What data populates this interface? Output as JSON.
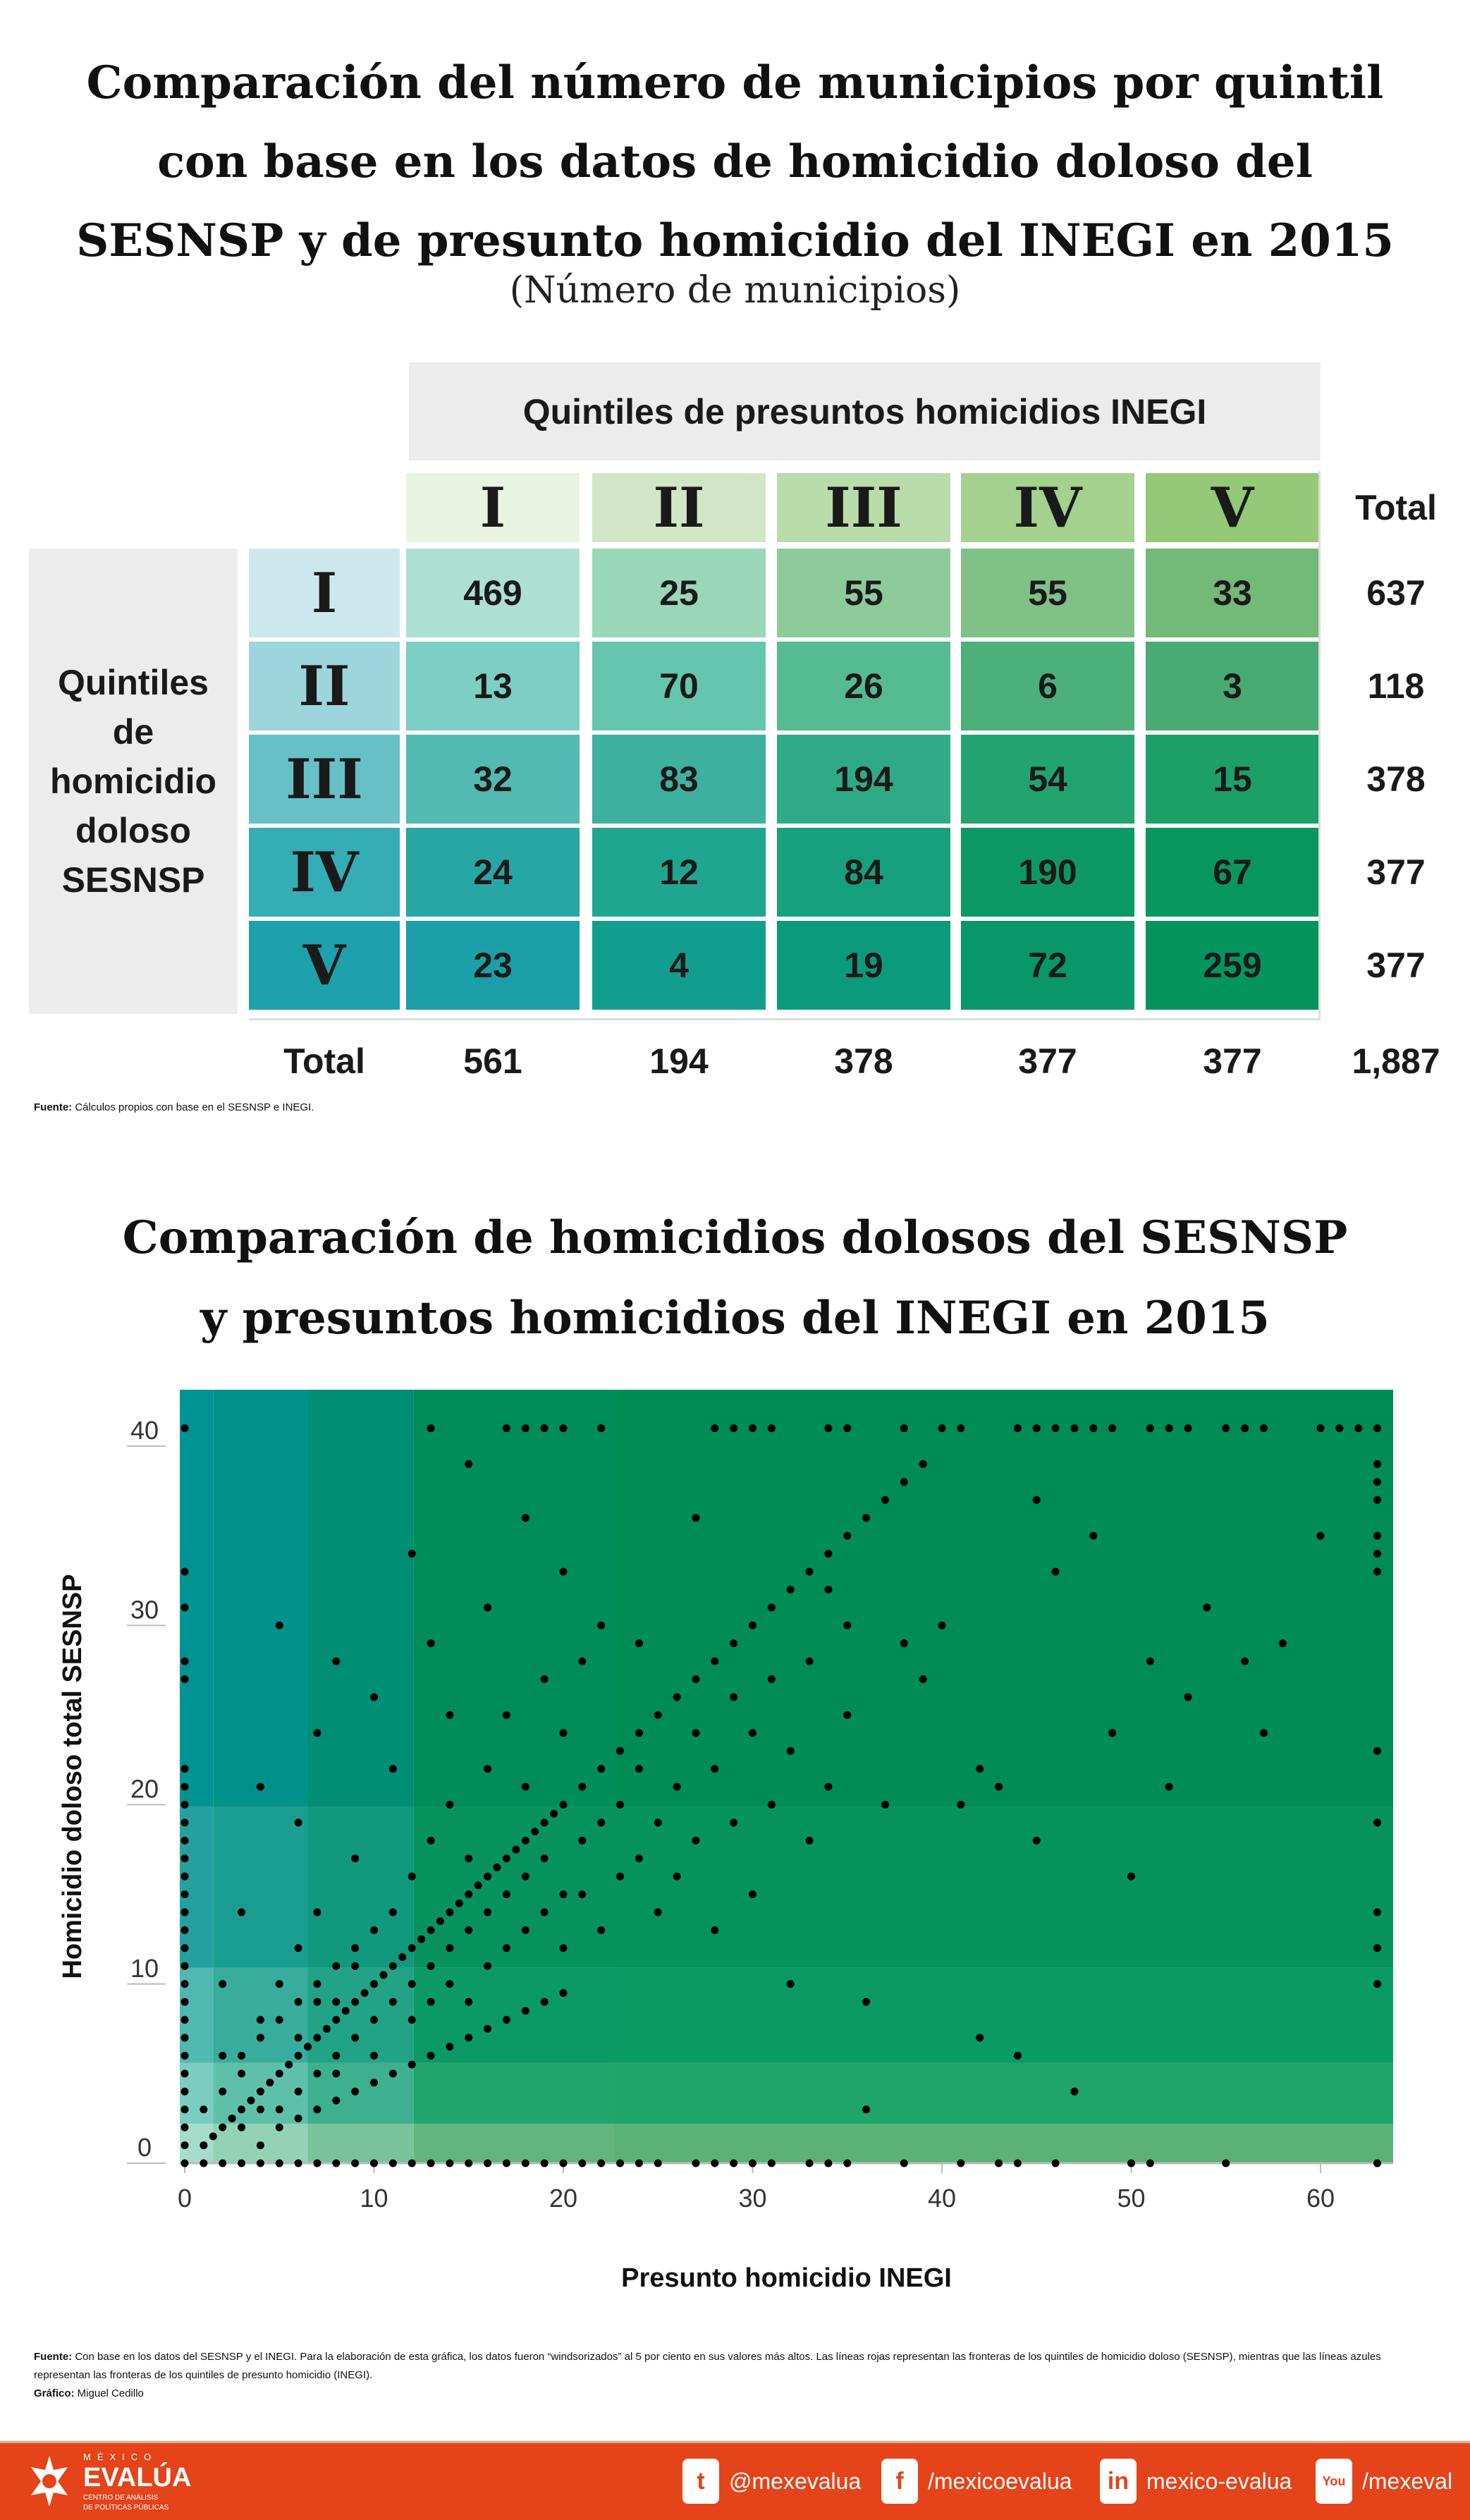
{
  "table_title": [
    "Comparación del número de municipios por quintil",
    "con base en los datos de homicidio doloso del",
    "SESNSP y de presunto homicidio del INEGI en 2015"
  ],
  "table_subtitle": "(Número de municipios)",
  "table": {
    "col_group_label": "Quintiles de presuntos homicidios INEGI",
    "row_group_label": [
      "Quintiles",
      "de",
      "homicidio",
      "doloso",
      "SESNSP"
    ],
    "columns": [
      "I",
      "II",
      "III",
      "IV",
      "V"
    ],
    "rows": [
      "I",
      "II",
      "III",
      "IV",
      "V"
    ],
    "total_label": "Total",
    "values": [
      [
        469,
        25,
        55,
        55,
        33
      ],
      [
        13,
        70,
        26,
        6,
        3
      ],
      [
        32,
        83,
        194,
        54,
        15
      ],
      [
        24,
        12,
        84,
        190,
        67
      ],
      [
        23,
        4,
        19,
        72,
        259
      ]
    ],
    "row_totals": [
      "637",
      "118",
      "378",
      "377",
      "377"
    ],
    "col_totals": [
      "561",
      "194",
      "378",
      "377",
      "377"
    ],
    "grand_total": "1,887",
    "colors": {
      "col_headers": [
        "#e8f3e2",
        "#d2e6c7",
        "#badcaa",
        "#a5d18e",
        "#95c978"
      ],
      "row_headers": [
        "#cde8ec",
        "#9dd5dc",
        "#66c0c6",
        "#35adb4",
        "#1ea1ad"
      ],
      "cells": [
        [
          "#ade0d2",
          "#9ad6b9",
          "#8ecb9b",
          "#80c186",
          "#73b978"
        ],
        [
          "#7bcfc4",
          "#66c6ad",
          "#55bb93",
          "#4bb07a",
          "#48ab73"
        ],
        [
          "#52b9b3",
          "#3eb09f",
          "#2eaa86",
          "#22a36f",
          "#1da067"
        ],
        [
          "#27a6a4",
          "#1ea690",
          "#17a07e",
          "#0d9966",
          "#07975f"
        ],
        [
          "#1b9fa8",
          "#129e8f",
          "#0b9a7b",
          "#079769",
          "#04955e"
        ]
      ]
    }
  },
  "table_source": {
    "label": "Fuente:",
    "text": " Cálculos propios con base en el SESNSP e INEGI."
  },
  "chart_title": [
    "Comparación de homicidios dolosos del SESNSP",
    "y presuntos homicidios del INEGI en 2015"
  ],
  "chart_data": {
    "type": "scatter",
    "title": "Comparación de homicidios dolosos del SESNSP y presuntos homicidios del INEGI en 2015",
    "xlabel": "Presunto homicidio INEGI",
    "ylabel": "Homicidio doloso total SESNSP",
    "xlim": [
      0,
      64
    ],
    "ylim": [
      0,
      43
    ],
    "xticks": [
      0,
      10,
      20,
      30,
      40,
      50,
      60
    ],
    "yticks": [
      0,
      10,
      20,
      30,
      40
    ],
    "x_quintile_bounds": [
      1.5,
      6.5,
      12.1,
      22.7
    ],
    "y_quintile_bounds": [
      2.2,
      5.6,
      10.9,
      19.9
    ],
    "zone_colors": [
      [
        "#a6dccb",
        "#93d2b5",
        "#7ac39a",
        "#62b57c",
        "#5bb276"
      ],
      [
        "#7acdc0",
        "#5fc0aa",
        "#3cb08f",
        "#22a56d",
        "#1fa56a"
      ],
      [
        "#4fb8b0",
        "#38ad9d",
        "#22a385",
        "#0b9965",
        "#0a9a64"
      ],
      [
        "#25a0a0",
        "#1a9e92",
        "#12987d",
        "#08935e",
        "#06935c"
      ],
      [
        "#009393",
        "#00928a",
        "#008e74",
        "#008d5a",
        "#008c55"
      ]
    ],
    "points": [
      [
        0,
        0
      ],
      [
        0,
        1
      ],
      [
        0,
        2
      ],
      [
        0,
        3
      ],
      [
        0,
        4
      ],
      [
        0,
        5
      ],
      [
        0,
        6
      ],
      [
        0,
        7
      ],
      [
        0,
        8
      ],
      [
        0,
        9
      ],
      [
        0,
        10
      ],
      [
        0,
        11
      ],
      [
        0,
        12
      ],
      [
        0,
        13
      ],
      [
        0,
        14
      ],
      [
        0,
        15
      ],
      [
        0,
        16
      ],
      [
        0,
        17
      ],
      [
        0,
        18
      ],
      [
        0,
        19
      ],
      [
        0,
        20
      ],
      [
        0,
        21
      ],
      [
        0,
        22
      ],
      [
        0,
        27
      ],
      [
        0,
        28
      ],
      [
        0,
        31
      ],
      [
        0,
        33
      ],
      [
        0,
        41
      ],
      [
        1,
        0
      ],
      [
        2,
        0
      ],
      [
        3,
        0
      ],
      [
        4,
        0
      ],
      [
        5,
        0
      ],
      [
        6,
        0
      ],
      [
        7,
        0
      ],
      [
        8,
        0
      ],
      [
        9,
        0
      ],
      [
        10,
        0
      ],
      [
        11,
        0
      ],
      [
        12,
        0
      ],
      [
        13,
        0
      ],
      [
        14,
        0
      ],
      [
        15,
        0
      ],
      [
        16,
        0
      ],
      [
        17,
        0
      ],
      [
        18,
        0
      ],
      [
        19,
        0
      ],
      [
        20,
        0
      ],
      [
        21,
        0
      ],
      [
        22,
        0
      ],
      [
        23,
        0
      ],
      [
        24,
        0
      ],
      [
        25,
        0
      ],
      [
        27,
        0
      ],
      [
        28,
        0
      ],
      [
        29,
        0
      ],
      [
        30,
        0
      ],
      [
        31,
        0
      ],
      [
        33,
        0
      ],
      [
        34,
        0
      ],
      [
        35,
        0
      ],
      [
        38,
        0
      ],
      [
        41,
        0
      ],
      [
        43,
        0
      ],
      [
        44,
        0
      ],
      [
        46,
        0
      ],
      [
        50,
        0
      ],
      [
        51,
        0
      ],
      [
        55,
        0
      ],
      [
        63,
        0
      ],
      [
        13,
        41
      ],
      [
        17,
        41
      ],
      [
        18,
        41
      ],
      [
        19,
        41
      ],
      [
        20,
        41
      ],
      [
        22,
        41
      ],
      [
        28,
        41
      ],
      [
        29,
        41
      ],
      [
        30,
        41
      ],
      [
        31,
        41
      ],
      [
        34,
        41
      ],
      [
        35,
        41
      ],
      [
        38,
        41
      ],
      [
        40,
        41
      ],
      [
        41,
        41
      ],
      [
        44,
        41
      ],
      [
        45,
        41
      ],
      [
        46,
        41
      ],
      [
        47,
        41
      ],
      [
        48,
        41
      ],
      [
        49,
        41
      ],
      [
        51,
        41
      ],
      [
        52,
        41
      ],
      [
        53,
        41
      ],
      [
        55,
        41
      ],
      [
        56,
        41
      ],
      [
        57,
        41
      ],
      [
        60,
        41
      ],
      [
        61,
        41
      ],
      [
        62,
        41
      ],
      [
        63,
        41
      ],
      [
        63,
        39
      ],
      [
        63,
        38
      ],
      [
        63,
        37
      ],
      [
        63,
        35
      ],
      [
        63,
        34
      ],
      [
        63,
        33
      ],
      [
        63,
        23
      ],
      [
        63,
        19
      ],
      [
        63,
        14
      ],
      [
        63,
        12
      ],
      [
        63,
        10
      ],
      [
        63,
        0
      ],
      [
        1,
        1
      ],
      [
        1.5,
        1.5
      ],
      [
        2,
        2
      ],
      [
        2.5,
        2.5
      ],
      [
        3,
        3
      ],
      [
        3.5,
        3.5
      ],
      [
        4,
        4
      ],
      [
        4.5,
        4.5
      ],
      [
        5,
        5
      ],
      [
        5.5,
        5.5
      ],
      [
        6,
        6
      ],
      [
        6.5,
        6.5
      ],
      [
        7,
        7
      ],
      [
        7.5,
        7.5
      ],
      [
        8,
        8
      ],
      [
        8.5,
        8.5
      ],
      [
        9,
        9
      ],
      [
        9.5,
        9.5
      ],
      [
        10,
        10
      ],
      [
        10.5,
        10.5
      ],
      [
        11,
        11
      ],
      [
        11.5,
        11.5
      ],
      [
        12,
        12
      ],
      [
        12.5,
        12.5
      ],
      [
        13,
        13
      ],
      [
        13.5,
        13.5
      ],
      [
        14,
        14
      ],
      [
        14.5,
        14.5
      ],
      [
        15,
        15
      ],
      [
        15.5,
        15.5
      ],
      [
        16,
        16
      ],
      [
        16.5,
        16.5
      ],
      [
        17,
        17
      ],
      [
        17.5,
        17.5
      ],
      [
        18,
        18
      ],
      [
        18.5,
        18.5
      ],
      [
        19,
        19
      ],
      [
        19.5,
        19.5
      ],
      [
        20,
        20
      ],
      [
        21,
        21
      ],
      [
        22,
        22
      ],
      [
        23,
        23
      ],
      [
        24,
        24
      ],
      [
        25,
        25
      ],
      [
        26,
        26
      ],
      [
        27,
        27
      ],
      [
        28,
        28
      ],
      [
        29,
        29
      ],
      [
        30,
        30
      ],
      [
        31,
        31
      ],
      [
        32,
        32
      ],
      [
        33,
        33
      ],
      [
        34,
        34
      ],
      [
        35,
        35
      ],
      [
        36,
        36
      ],
      [
        37,
        37
      ],
      [
        38,
        38
      ],
      [
        39,
        39
      ],
      [
        5,
        2
      ],
      [
        6,
        2.5
      ],
      [
        7,
        3
      ],
      [
        8,
        3.5
      ],
      [
        9,
        4
      ],
      [
        10,
        4.5
      ],
      [
        11,
        5
      ],
      [
        12,
        5.5
      ],
      [
        13,
        6
      ],
      [
        14,
        6.5
      ],
      [
        15,
        7
      ],
      [
        16,
        7.5
      ],
      [
        17,
        8
      ],
      [
        18,
        8.5
      ],
      [
        19,
        9
      ],
      [
        20,
        9.5
      ],
      [
        2,
        4
      ],
      [
        3,
        6
      ],
      [
        4,
        8
      ],
      [
        5,
        10
      ],
      [
        6,
        12
      ],
      [
        7,
        14
      ],
      [
        3,
        5
      ],
      [
        4,
        7
      ],
      [
        5,
        8
      ],
      [
        6,
        9
      ],
      [
        7,
        10
      ],
      [
        8,
        11
      ],
      [
        9,
        12
      ],
      [
        1,
        3
      ],
      [
        2,
        6
      ],
      [
        3,
        2
      ],
      [
        4,
        3
      ],
      [
        4,
        1
      ],
      [
        5,
        3
      ],
      [
        6,
        4
      ],
      [
        6,
        7
      ],
      [
        7,
        5
      ],
      [
        7,
        9
      ],
      [
        8,
        6
      ],
      [
        8,
        5
      ],
      [
        8,
        9
      ],
      [
        9,
        7
      ],
      [
        9,
        11
      ],
      [
        10,
        8
      ],
      [
        10,
        13
      ],
      [
        10,
        6
      ],
      [
        11,
        9
      ],
      [
        11,
        14
      ],
      [
        12,
        10
      ],
      [
        12,
        8
      ],
      [
        12,
        16
      ],
      [
        13,
        11
      ],
      [
        13,
        9
      ],
      [
        13,
        18
      ],
      [
        14,
        12
      ],
      [
        14,
        10
      ],
      [
        14,
        20
      ],
      [
        15,
        13
      ],
      [
        15,
        9
      ],
      [
        15,
        17
      ],
      [
        16,
        14
      ],
      [
        16,
        11
      ],
      [
        16,
        22
      ],
      [
        17,
        15
      ],
      [
        17,
        12
      ],
      [
        17,
        25
      ],
      [
        18,
        16
      ],
      [
        18,
        13
      ],
      [
        18,
        21
      ],
      [
        19,
        17
      ],
      [
        19,
        14
      ],
      [
        19,
        27
      ],
      [
        20,
        12
      ],
      [
        20,
        15
      ],
      [
        20,
        24
      ],
      [
        21,
        18
      ],
      [
        21,
        15
      ],
      [
        21,
        28
      ],
      [
        22,
        19
      ],
      [
        22,
        13
      ],
      [
        22,
        30
      ],
      [
        23,
        20
      ],
      [
        23,
        16
      ],
      [
        24,
        17
      ],
      [
        24,
        22
      ],
      [
        25,
        14
      ],
      [
        25,
        19
      ],
      [
        26,
        21
      ],
      [
        26,
        16
      ],
      [
        27,
        24
      ],
      [
        27,
        18
      ],
      [
        28,
        13
      ],
      [
        28,
        22
      ],
      [
        29,
        26
      ],
      [
        29,
        19
      ],
      [
        30,
        24
      ],
      [
        30,
        15
      ],
      [
        31,
        27
      ],
      [
        31,
        20
      ],
      [
        32,
        23
      ],
      [
        32,
        10
      ],
      [
        33,
        28
      ],
      [
        33,
        18
      ],
      [
        34,
        21
      ],
      [
        34,
        32
      ],
      [
        35,
        25
      ],
      [
        35,
        30
      ],
      [
        36,
        9
      ],
      [
        36,
        3
      ],
      [
        37,
        20
      ],
      [
        38,
        29
      ],
      [
        39,
        27
      ],
      [
        40,
        30
      ],
      [
        41,
        20
      ],
      [
        42,
        7
      ],
      [
        42,
        22
      ],
      [
        43,
        21
      ],
      [
        44,
        6
      ],
      [
        45,
        37
      ],
      [
        45,
        18
      ],
      [
        46,
        33
      ],
      [
        47,
        4
      ],
      [
        48,
        35
      ],
      [
        49,
        24
      ],
      [
        50,
        16
      ],
      [
        51,
        28
      ],
      [
        52,
        21
      ],
      [
        53,
        26
      ],
      [
        54,
        31
      ],
      [
        56,
        28
      ],
      [
        57,
        24
      ],
      [
        58,
        29
      ],
      [
        60,
        35
      ],
      [
        2,
        10
      ],
      [
        3,
        14
      ],
      [
        4,
        21
      ],
      [
        5,
        30
      ],
      [
        6,
        19
      ],
      [
        7,
        24
      ],
      [
        8,
        28
      ],
      [
        9,
        17
      ],
      [
        10,
        26
      ],
      [
        11,
        22
      ],
      [
        12,
        34
      ],
      [
        13,
        29
      ],
      [
        14,
        25
      ],
      [
        15,
        39
      ],
      [
        16,
        31
      ],
      [
        18,
        36
      ],
      [
        20,
        33
      ],
      [
        24,
        29
      ],
      [
        27,
        36
      ]
    ]
  },
  "chart_source": {
    "label": "Fuente:",
    "text": " Con base en los datos del SESNSP y el INEGI. Para la elaboración de esta gráfica, los datos fueron “windsorizados” al 5 por ciento en sus valores más altos. Las líneas rojas representan las fronteras de los quintiles de homicidio doloso (SESNSP), mientras que las líneas azules representan las fronteras de los quintiles de presunto homicidio (INEGI).",
    "credit_label": "Gráfico:",
    "credit_text": " Miguel Cedillo"
  },
  "footer": {
    "logo": {
      "top": "MÉXICO",
      "main": "EVALÚA",
      "sub1": "CENTRO DE ANÁLISIS",
      "sub2": "DE POLÍTICAS PÚBLICAS"
    },
    "social": [
      {
        "icon": "twitter-icon",
        "glyph": "t",
        "label": "@mexevalua"
      },
      {
        "icon": "facebook-icon",
        "glyph": "f",
        "label": "/mexicoevalua"
      },
      {
        "icon": "linkedin-icon",
        "glyph": "in",
        "label": "mexico-evalua"
      },
      {
        "icon": "youtube-icon",
        "glyph": "You",
        "label": "/mexeval"
      }
    ],
    "color": "#e5431a"
  }
}
